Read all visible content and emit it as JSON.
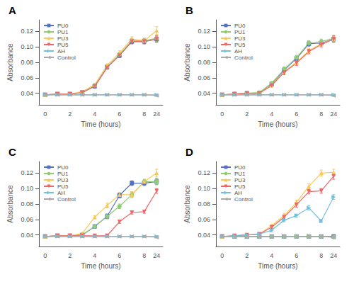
{
  "chart_data": [
    {
      "type": "line",
      "title": "A",
      "x_label": "Time (hours)",
      "y_label": "Absorbance",
      "categories": [
        "0",
        null,
        "2",
        null,
        "4",
        null,
        "6",
        null,
        "8",
        "24"
      ],
      "ylim": [
        0.025,
        0.135
      ],
      "yticks": [
        0.04,
        0.06,
        0.08,
        {
          "value": 0.1,
          "label": "0.10"
        },
        0.12
      ],
      "grid": false,
      "legend": "upper left",
      "series": [
        {
          "name": "PU0",
          "color": "#5470c6",
          "marker": "square",
          "values": [
            0.038,
            0.039,
            0.039,
            0.041,
            0.049,
            0.074,
            0.089,
            0.107,
            0.107,
            0.11
          ],
          "errors": [
            0.001,
            0.001,
            0.001,
            0.001,
            0.002,
            0.002,
            0.003,
            0.003,
            0.003,
            0.004
          ]
        },
        {
          "name": "PU1",
          "color": "#91cc75",
          "marker": "circle",
          "values": [
            0.038,
            0.039,
            0.039,
            0.041,
            0.05,
            0.074,
            0.09,
            0.108,
            0.108,
            0.111
          ],
          "errors": [
            0.001,
            0.001,
            0.001,
            0.001,
            0.002,
            0.002,
            0.003,
            0.003,
            0.003,
            0.004
          ]
        },
        {
          "name": "PU3",
          "color": "#fac858",
          "marker": "triangle-up",
          "values": [
            0.038,
            0.039,
            0.039,
            0.042,
            0.051,
            0.076,
            0.092,
            0.11,
            0.108,
            0.121
          ],
          "errors": [
            0.001,
            0.001,
            0.001,
            0.001,
            0.002,
            0.002,
            0.003,
            0.003,
            0.003,
            0.005
          ]
        },
        {
          "name": "PU5",
          "color": "#ee6666",
          "marker": "triangle-down",
          "values": [
            0.038,
            0.039,
            0.039,
            0.041,
            0.049,
            0.073,
            0.089,
            0.107,
            0.107,
            0.11
          ],
          "errors": [
            0.001,
            0.001,
            0.001,
            0.001,
            0.002,
            0.002,
            0.003,
            0.003,
            0.003,
            0.004
          ]
        },
        {
          "name": "AH",
          "color": "#73c0de",
          "marker": "triangle-right",
          "values": [
            0.038,
            0.038,
            0.038,
            0.038,
            0.038,
            0.038,
            0.038,
            0.038,
            0.038,
            0.038
          ],
          "errors": [
            0.001,
            0.001,
            0.001,
            0.001,
            0.001,
            0.001,
            0.001,
            0.001,
            0.001,
            0.001
          ]
        },
        {
          "name": "Control",
          "color": "#aaaaaa",
          "marker": "triangle-left",
          "values": [
            0.038,
            0.038,
            0.038,
            0.038,
            0.038,
            0.038,
            0.038,
            0.038,
            0.038,
            0.037
          ],
          "errors": [
            0.001,
            0.001,
            0.001,
            0.001,
            0.001,
            0.001,
            0.001,
            0.001,
            0.001,
            0.001
          ]
        }
      ]
    },
    {
      "type": "line",
      "title": "B",
      "x_label": "Time (hours)",
      "y_label": "Absorbance",
      "categories": [
        "0",
        null,
        "2",
        null,
        "4",
        null,
        "6",
        null,
        "8",
        "24"
      ],
      "ylim": [
        0.025,
        0.135
      ],
      "yticks": [
        0.04,
        0.06,
        0.08,
        {
          "value": 0.1,
          "label": "0.10"
        },
        0.12
      ],
      "grid": false,
      "legend": "upper left",
      "series": [
        {
          "name": "PU0",
          "color": "#5470c6",
          "marker": "square",
          "values": [
            0.038,
            0.039,
            0.04,
            0.04,
            0.052,
            0.07,
            0.085,
            0.104,
            0.105,
            0.11
          ],
          "errors": [
            0.001,
            0.001,
            0.001,
            0.001,
            0.002,
            0.003,
            0.003,
            0.003,
            0.003,
            0.004
          ]
        },
        {
          "name": "PU1",
          "color": "#91cc75",
          "marker": "circle",
          "values": [
            0.038,
            0.039,
            0.04,
            0.041,
            0.053,
            0.071,
            0.086,
            0.105,
            0.107,
            0.111
          ],
          "errors": [
            0.001,
            0.001,
            0.001,
            0.001,
            0.002,
            0.003,
            0.003,
            0.003,
            0.003,
            0.004
          ]
        },
        {
          "name": "PU3",
          "color": "#fac858",
          "marker": "triangle-up",
          "values": [
            0.038,
            0.039,
            0.04,
            0.04,
            0.051,
            0.068,
            0.08,
            0.095,
            0.104,
            0.11
          ],
          "errors": [
            0.001,
            0.001,
            0.001,
            0.001,
            0.002,
            0.003,
            0.003,
            0.003,
            0.003,
            0.004
          ]
        },
        {
          "name": "PU5",
          "color": "#ee6666",
          "marker": "triangle-down",
          "values": [
            0.038,
            0.039,
            0.04,
            0.04,
            0.05,
            0.067,
            0.079,
            0.094,
            0.103,
            0.11
          ],
          "errors": [
            0.001,
            0.001,
            0.001,
            0.001,
            0.002,
            0.003,
            0.003,
            0.003,
            0.003,
            0.004
          ]
        },
        {
          "name": "AH",
          "color": "#73c0de",
          "marker": "triangle-right",
          "values": [
            0.038,
            0.038,
            0.038,
            0.038,
            0.038,
            0.038,
            0.038,
            0.038,
            0.038,
            0.038
          ],
          "errors": [
            0.001,
            0.001,
            0.001,
            0.001,
            0.001,
            0.001,
            0.001,
            0.001,
            0.001,
            0.001
          ]
        },
        {
          "name": "Control",
          "color": "#aaaaaa",
          "marker": "triangle-left",
          "values": [
            0.038,
            0.038,
            0.038,
            0.038,
            0.038,
            0.038,
            0.038,
            0.038,
            0.038,
            0.037
          ],
          "errors": [
            0.001,
            0.001,
            0.001,
            0.001,
            0.001,
            0.001,
            0.001,
            0.001,
            0.001,
            0.001
          ]
        }
      ]
    },
    {
      "type": "line",
      "title": "C",
      "x_label": "Time (hours)",
      "y_label": "Absorbance",
      "categories": [
        "0",
        null,
        "2",
        null,
        "4",
        null,
        "6",
        null,
        "8",
        "24"
      ],
      "ylim": [
        0.025,
        0.135
      ],
      "yticks": [
        0.04,
        0.06,
        0.08,
        {
          "value": 0.1,
          "label": "0.10"
        },
        0.12
      ],
      "grid": false,
      "legend": "upper left",
      "series": [
        {
          "name": "PU0",
          "color": "#5470c6",
          "marker": "square",
          "values": [
            0.038,
            0.039,
            0.039,
            0.04,
            0.051,
            0.064,
            0.091,
            0.107,
            0.107,
            0.109
          ],
          "errors": [
            0.001,
            0.001,
            0.001,
            0.001,
            0.002,
            0.003,
            0.003,
            0.003,
            0.003,
            0.004
          ]
        },
        {
          "name": "PU1",
          "color": "#91cc75",
          "marker": "circle",
          "values": [
            0.038,
            0.039,
            0.039,
            0.04,
            0.051,
            0.064,
            0.077,
            0.092,
            0.109,
            0.109
          ],
          "errors": [
            0.001,
            0.001,
            0.001,
            0.001,
            0.002,
            0.003,
            0.003,
            0.003,
            0.003,
            0.004
          ]
        },
        {
          "name": "PU3",
          "color": "#fac858",
          "marker": "triangle-up",
          "values": [
            0.038,
            0.039,
            0.039,
            0.042,
            0.063,
            0.078,
            0.092,
            0.092,
            0.109,
            0.12
          ],
          "errors": [
            0.001,
            0.001,
            0.001,
            0.001,
            0.002,
            0.003,
            0.003,
            0.004,
            0.003,
            0.005
          ]
        },
        {
          "name": "PU5",
          "color": "#ee6666",
          "marker": "triangle-down",
          "values": [
            0.038,
            0.039,
            0.039,
            0.039,
            0.039,
            0.039,
            0.057,
            0.069,
            0.07,
            0.097
          ],
          "errors": [
            0.001,
            0.001,
            0.001,
            0.001,
            0.001,
            0.001,
            0.002,
            0.002,
            0.002,
            0.003
          ]
        },
        {
          "name": "AH",
          "color": "#73c0de",
          "marker": "triangle-right",
          "values": [
            0.038,
            0.038,
            0.038,
            0.038,
            0.038,
            0.038,
            0.038,
            0.038,
            0.038,
            0.038
          ],
          "errors": [
            0.001,
            0.001,
            0.001,
            0.001,
            0.001,
            0.001,
            0.001,
            0.001,
            0.001,
            0.001
          ]
        },
        {
          "name": "Control",
          "color": "#aaaaaa",
          "marker": "triangle-left",
          "values": [
            0.038,
            0.038,
            0.038,
            0.038,
            0.038,
            0.038,
            0.038,
            0.038,
            0.038,
            0.037
          ],
          "errors": [
            0.001,
            0.001,
            0.001,
            0.001,
            0.001,
            0.001,
            0.001,
            0.001,
            0.001,
            0.001
          ]
        }
      ]
    },
    {
      "type": "line",
      "title": "D",
      "x_label": "Time (hours)",
      "y_label": "Absorbance",
      "categories": [
        "0",
        null,
        "2",
        null,
        "4",
        null,
        "6",
        null,
        "8",
        "24"
      ],
      "ylim": [
        0.025,
        0.135
      ],
      "yticks": [
        0.04,
        0.06,
        0.08,
        {
          "value": 0.1,
          "label": "0.10"
        },
        0.12
      ],
      "grid": false,
      "legend": "upper left",
      "series": [
        {
          "name": "PU0",
          "color": "#5470c6",
          "marker": "square",
          "values": [
            0.038,
            0.038,
            0.038,
            0.038,
            0.038,
            0.038,
            0.038,
            0.038,
            0.038,
            0.038
          ],
          "errors": [
            0.001,
            0.001,
            0.001,
            0.001,
            0.001,
            0.001,
            0.001,
            0.001,
            0.001,
            0.001
          ]
        },
        {
          "name": "PU1",
          "color": "#91cc75",
          "marker": "circle",
          "values": [
            0.038,
            0.038,
            0.038,
            0.038,
            0.038,
            0.038,
            0.038,
            0.038,
            0.038,
            0.037
          ],
          "errors": [
            0.001,
            0.001,
            0.001,
            0.001,
            0.001,
            0.001,
            0.001,
            0.001,
            0.001,
            0.001
          ]
        },
        {
          "name": "PU3",
          "color": "#fac858",
          "marker": "triangle-up",
          "values": [
            0.038,
            0.039,
            0.04,
            0.041,
            0.052,
            0.065,
            0.082,
            0.103,
            0.12,
            0.121
          ],
          "errors": [
            0.001,
            0.001,
            0.001,
            0.001,
            0.002,
            0.003,
            0.003,
            0.003,
            0.004,
            0.004
          ]
        },
        {
          "name": "PU5",
          "color": "#ee6666",
          "marker": "triangle-down",
          "values": [
            0.038,
            0.039,
            0.04,
            0.041,
            0.05,
            0.063,
            0.079,
            0.096,
            0.097,
            0.116
          ],
          "errors": [
            0.001,
            0.001,
            0.001,
            0.001,
            0.002,
            0.003,
            0.003,
            0.003,
            0.003,
            0.004
          ]
        },
        {
          "name": "AH",
          "color": "#73c0de",
          "marker": "triangle-right",
          "values": [
            0.038,
            0.039,
            0.04,
            0.041,
            0.046,
            0.059,
            0.065,
            0.075,
            0.058,
            0.089
          ],
          "errors": [
            0.001,
            0.001,
            0.001,
            0.001,
            0.002,
            0.002,
            0.002,
            0.003,
            0.002,
            0.003
          ]
        },
        {
          "name": "Control",
          "color": "#aaaaaa",
          "marker": "triangle-left",
          "values": [
            0.038,
            0.038,
            0.038,
            0.038,
            0.038,
            0.038,
            0.038,
            0.038,
            0.038,
            0.037
          ],
          "errors": [
            0.001,
            0.001,
            0.001,
            0.001,
            0.001,
            0.001,
            0.001,
            0.001,
            0.001,
            0.001
          ]
        }
      ]
    }
  ]
}
